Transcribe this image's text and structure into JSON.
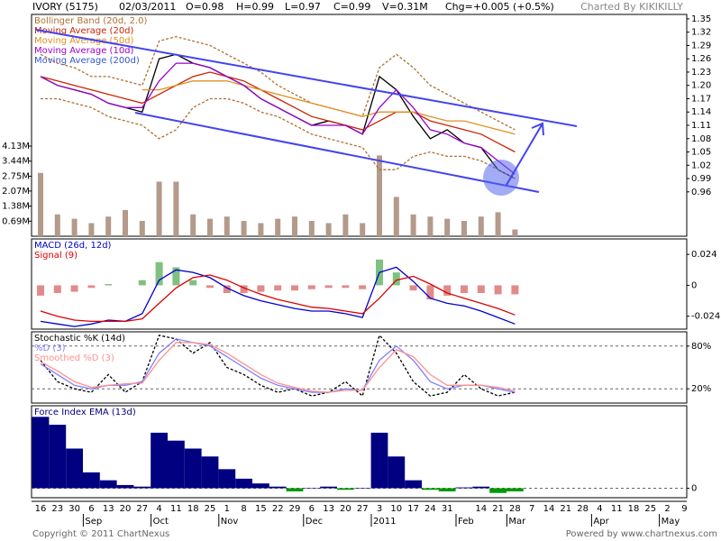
{
  "header": {
    "symbol": "IVORY (5175)",
    "date": "02/03/2011",
    "open": "O=0.98",
    "high": "H=0.99",
    "low": "L=0.97",
    "close": "C=0.99",
    "volume": "V=0.31M",
    "change": "Chg=+0.005 (+0.5%)",
    "credit": "Charted By KIKIKILLY"
  },
  "footer": {
    "copyright": "Copyright © 2011 ChartNexus",
    "powered": "Powered by www.chartnexus.com"
  },
  "chart_data": [
    {
      "type": "line",
      "categories": [
        "16",
        "23",
        "30",
        "6",
        "13",
        "20",
        "27",
        "4",
        "11",
        "18",
        "25",
        "1",
        "8",
        "15",
        "22",
        "29",
        "6",
        "13",
        "20",
        "27",
        "3",
        "10",
        "17",
        "24",
        "31",
        null,
        "14",
        "21",
        "28",
        "7",
        "14",
        "21",
        "28",
        "4",
        "11",
        "18",
        "25",
        "2",
        "9"
      ],
      "month_labels": [
        null,
        null,
        null,
        "Sep",
        null,
        null,
        null,
        "Oct",
        null,
        null,
        null,
        "Nov",
        null,
        null,
        null,
        null,
        "Dec",
        null,
        null,
        null,
        "2011",
        null,
        null,
        null,
        null,
        "Feb",
        null,
        null,
        "Mar",
        null,
        null,
        null,
        null,
        "Apr",
        null,
        null,
        null,
        "May",
        null
      ],
      "ylim": [
        0.86,
        1.36
      ],
      "yticks": [
        1.35,
        1.32,
        1.29,
        1.26,
        1.23,
        {
          "value": 1.2,
          "label": "1.20"
        },
        1.17,
        1.14,
        1.11,
        1.08,
        1.05,
        1.02,
        0.99,
        0.96
      ],
      "grid": false,
      "values": [
        1.22,
        1.2,
        1.19,
        1.18,
        1.16,
        1.15,
        1.14,
        1.26,
        1.27,
        1.25,
        1.24,
        1.22,
        1.2,
        1.17,
        1.15,
        1.13,
        1.11,
        1.12,
        1.11,
        1.09,
        1.22,
        1.19,
        1.13,
        1.08,
        1.1,
        1.07,
        1.06,
        1.01,
        0.99,
        null,
        null,
        null,
        null,
        null,
        null,
        null,
        null,
        null,
        null
      ],
      "color": "#000000",
      "y2lim": [
        0,
        10.16
      ],
      "y2ticks": [
        {
          "value": 4.13,
          "label": "4.13M"
        },
        {
          "value": 3.44,
          "label": "3.44M"
        },
        {
          "value": 2.75,
          "label": "2.75M"
        },
        {
          "value": 2.07,
          "label": "2.07M"
        },
        {
          "value": 1.38,
          "label": "1.38M"
        },
        {
          "value": 0.69,
          "label": "0.69M"
        }
      ],
      "volume": {
        "axis": "y2",
        "color": "#b39a8a",
        "values": [
          2.9,
          1.0,
          0.8,
          0.6,
          0.9,
          1.2,
          0.7,
          2.5,
          2.5,
          1.0,
          0.8,
          0.9,
          0.7,
          0.6,
          0.8,
          0.9,
          0.7,
          0.6,
          1.0,
          0.6,
          3.7,
          1.8,
          1.0,
          0.9,
          0.8,
          0.7,
          0.9,
          1.1,
          0.31,
          null,
          null,
          null,
          null,
          null,
          null,
          null,
          null,
          null,
          null
        ]
      },
      "series": [
        {
          "name": "Bollinger Band (20d, 2.0)",
          "color": "#b07030",
          "upper": [
            1.27,
            1.25,
            1.24,
            1.22,
            1.22,
            1.21,
            1.2,
            1.3,
            1.31,
            1.3,
            1.29,
            1.27,
            1.25,
            1.23,
            1.2,
            1.18,
            1.16,
            1.15,
            1.14,
            1.13,
            1.24,
            1.27,
            1.24,
            1.2,
            1.18,
            1.16,
            1.14,
            1.12,
            1.1,
            null,
            null,
            null,
            null,
            null,
            null,
            null,
            null,
            null,
            null
          ],
          "lower": [
            1.17,
            1.17,
            1.16,
            1.15,
            1.13,
            1.12,
            1.11,
            1.08,
            1.1,
            1.15,
            1.17,
            1.17,
            1.16,
            1.14,
            1.13,
            1.11,
            1.09,
            1.08,
            1.07,
            1.06,
            1.01,
            1.01,
            1.04,
            1.05,
            1.04,
            1.04,
            1.03,
            1.01,
            0.99,
            null,
            null,
            null,
            null,
            null,
            null,
            null,
            null,
            null,
            null
          ]
        },
        {
          "name": "Moving Average (20d)",
          "color": "#cc2200",
          "values": [
            1.22,
            1.21,
            1.2,
            1.19,
            1.18,
            1.17,
            1.16,
            1.18,
            1.2,
            1.22,
            1.23,
            1.22,
            1.21,
            1.19,
            1.17,
            1.15,
            1.13,
            1.12,
            1.11,
            1.1,
            1.12,
            1.14,
            1.14,
            1.12,
            1.11,
            1.1,
            1.09,
            1.07,
            1.05,
            null,
            null,
            null,
            null,
            null,
            null,
            null,
            null,
            null,
            null
          ]
        },
        {
          "name": "Moving Average (50d)",
          "color": "#e09020",
          "values": [
            null,
            null,
            null,
            null,
            null,
            null,
            1.19,
            1.19,
            1.2,
            1.21,
            1.21,
            1.21,
            1.2,
            1.19,
            1.18,
            1.17,
            1.16,
            1.15,
            1.14,
            1.13,
            1.14,
            1.14,
            1.14,
            1.13,
            1.12,
            1.12,
            1.11,
            1.1,
            1.09,
            null,
            null,
            null,
            null,
            null,
            null,
            null,
            null,
            null,
            null
          ]
        },
        {
          "name": "Moving Average (10d)",
          "color": "#9900cc",
          "values": [
            1.22,
            1.2,
            1.19,
            1.18,
            1.16,
            1.15,
            1.15,
            1.21,
            1.25,
            1.25,
            1.24,
            1.22,
            1.2,
            1.17,
            1.15,
            1.13,
            1.11,
            1.11,
            1.11,
            1.09,
            1.15,
            1.19,
            1.15,
            1.1,
            1.09,
            1.07,
            1.06,
            1.03,
            1.0,
            null,
            null,
            null,
            null,
            null,
            null,
            null,
            null,
            null,
            null
          ]
        },
        {
          "name": "Moving Average (200d)",
          "color": "#3355cc",
          "values": [
            null,
            null,
            null,
            null,
            null,
            null,
            null,
            null,
            null,
            null,
            null,
            null,
            null,
            null,
            null,
            null,
            null,
            null,
            null,
            null,
            null,
            null,
            null,
            null,
            null,
            null,
            null,
            null,
            null,
            null,
            null,
            null,
            null,
            null,
            null,
            null,
            null,
            null,
            null
          ]
        }
      ]
    },
    {
      "type": "line",
      "ylim": [
        -0.034,
        0.036
      ],
      "yticks": [
        0.024,
        0,
        -0.024
      ],
      "grid": false,
      "histogram": {
        "up_color": "#80c080",
        "down_color": "#e08a8a",
        "values": [
          -0.008,
          -0.006,
          -0.005,
          -0.002,
          0.001,
          0,
          0.004,
          0.018,
          0.014,
          0.004,
          -0.002,
          -0.006,
          -0.006,
          -0.005,
          -0.004,
          -0.004,
          -0.003,
          -0.002,
          -0.002,
          -0.003,
          0.02,
          0.01,
          -0.004,
          -0.011,
          -0.008,
          -0.006,
          -0.006,
          -0.007,
          -0.007,
          null,
          null,
          null,
          null,
          null,
          null,
          null,
          null,
          null,
          null
        ]
      },
      "series": [
        {
          "name": "MACD (26d, 12d)",
          "color": "#0000cc",
          "values": [
            -0.028,
            -0.03,
            -0.032,
            -0.03,
            -0.027,
            -0.028,
            -0.022,
            0.004,
            0.012,
            0.01,
            0.006,
            -0.002,
            -0.008,
            -0.012,
            -0.015,
            -0.018,
            -0.02,
            -0.02,
            -0.022,
            -0.025,
            0.01,
            0.014,
            0.003,
            -0.01,
            -0.014,
            -0.016,
            -0.02,
            -0.025,
            -0.03,
            null,
            null,
            null,
            null,
            null,
            null,
            null,
            null,
            null,
            null
          ]
        },
        {
          "name": "Signal (9)",
          "color": "#dd0000",
          "values": [
            -0.02,
            -0.024,
            -0.027,
            -0.028,
            -0.028,
            -0.028,
            -0.026,
            -0.014,
            -0.002,
            0.006,
            0.008,
            0.004,
            -0.002,
            -0.007,
            -0.011,
            -0.014,
            -0.017,
            -0.018,
            -0.02,
            -0.022,
            -0.01,
            0.004,
            0.007,
            0.001,
            -0.006,
            -0.01,
            -0.014,
            -0.018,
            -0.023,
            null,
            null,
            null,
            null,
            null,
            null,
            null,
            null,
            null,
            null
          ]
        }
      ]
    },
    {
      "type": "line",
      "ylim": [
        0,
        100
      ],
      "yticks": [
        {
          "value": 80,
          "label": "80%"
        },
        {
          "value": 20,
          "label": "20%"
        }
      ],
      "grid": true,
      "series": [
        {
          "name": "Stochastic %K (14d)",
          "color": "#000000",
          "dashed": true,
          "values": [
            60,
            30,
            20,
            15,
            40,
            15,
            30,
            95,
            90,
            70,
            85,
            50,
            40,
            25,
            15,
            20,
            10,
            15,
            30,
            10,
            95,
            70,
            30,
            10,
            15,
            40,
            20,
            10,
            15,
            null,
            null,
            null,
            null,
            null,
            null,
            null,
            null,
            null,
            null
          ]
        },
        {
          "name": "%D (3)",
          "color": "#8080ff",
          "values": [
            55,
            40,
            25,
            20,
            25,
            25,
            30,
            70,
            90,
            85,
            80,
            65,
            50,
            35,
            25,
            20,
            15,
            15,
            20,
            18,
            60,
            80,
            60,
            30,
            20,
            25,
            25,
            20,
            15,
            null,
            null,
            null,
            null,
            null,
            null,
            null,
            null,
            null,
            null
          ]
        },
        {
          "name": "Smoothed %D (3)",
          "color": "#ff9090",
          "values": [
            58,
            45,
            30,
            22,
            25,
            27,
            28,
            60,
            85,
            85,
            82,
            70,
            55,
            40,
            28,
            22,
            17,
            15,
            18,
            18,
            50,
            75,
            65,
            40,
            25,
            25,
            25,
            22,
            17,
            null,
            null,
            null,
            null,
            null,
            null,
            null,
            null,
            null,
            null
          ]
        }
      ]
    },
    {
      "type": "area",
      "ylim": [
        -0.6,
        5.2
      ],
      "yticks": [
        0
      ],
      "grid": true,
      "series": [
        {
          "name": "Force Index EMA (13d)",
          "color": "#000080",
          "down_color": "#009900",
          "values": [
            4.5,
            4.0,
            2.5,
            1.0,
            0.5,
            0.2,
            0.1,
            3.5,
            3.0,
            2.5,
            2.0,
            1.2,
            0.6,
            0.3,
            0.1,
            -0.2,
            0,
            0.1,
            -0.1,
            0,
            3.5,
            2.0,
            0.5,
            -0.1,
            -0.2,
            0.05,
            0.1,
            -0.3,
            -0.2,
            null,
            null,
            null,
            null,
            null,
            null,
            null,
            null,
            null,
            null
          ]
        }
      ]
    }
  ]
}
